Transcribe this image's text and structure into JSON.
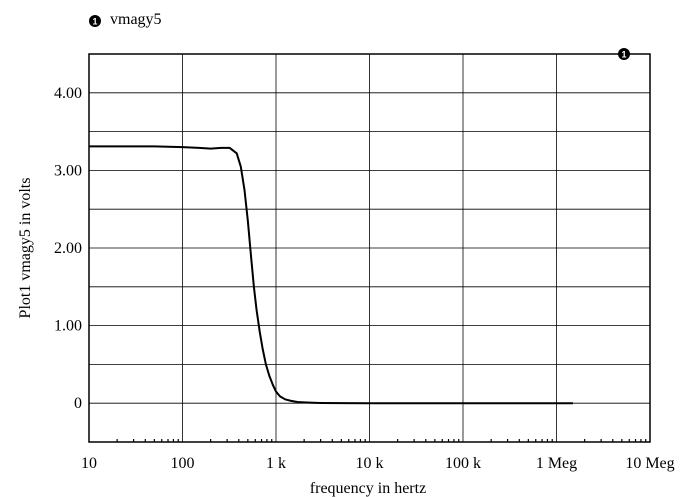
{
  "chart_data": {
    "type": "line",
    "xscale": "log",
    "xlim": [
      10,
      10000000
    ],
    "ylim": [
      -0.5,
      4.5
    ],
    "xlabel": "frequency in hertz",
    "ylabel": "Plot1 vmagy5 in volts",
    "x_tick_values": [
      10,
      100,
      1000,
      10000,
      100000,
      1000000,
      10000000
    ],
    "x_tick_labels": [
      "10",
      "100",
      "1 k",
      "10 k",
      "100 k",
      "1 Meg",
      "10 Meg"
    ],
    "y_tick_values": [
      0,
      1,
      2,
      3,
      4
    ],
    "y_tick_labels": [
      "0",
      "1.00",
      "2.00",
      "3.00",
      "4.00"
    ],
    "grid": true,
    "legend_position": "top-left",
    "series": [
      {
        "name": "vmagy5",
        "marker_label": "1",
        "color": "#000000",
        "x": [
          10,
          50,
          100,
          150,
          200,
          260,
          320,
          380,
          420,
          460,
          500,
          540,
          580,
          620,
          670,
          720,
          780,
          850,
          930,
          1000,
          1100,
          1250,
          1450,
          1700,
          2000,
          2500,
          3000,
          5000,
          10000,
          100000,
          1000000,
          1500000
        ],
        "y": [
          3.31,
          3.31,
          3.3,
          3.29,
          3.28,
          3.29,
          3.29,
          3.22,
          3.05,
          2.75,
          2.35,
          1.9,
          1.5,
          1.2,
          0.92,
          0.7,
          0.5,
          0.35,
          0.23,
          0.15,
          0.09,
          0.05,
          0.03,
          0.015,
          0.01,
          0.005,
          0.003,
          0.001,
          0,
          0,
          0,
          0
        ]
      }
    ]
  }
}
